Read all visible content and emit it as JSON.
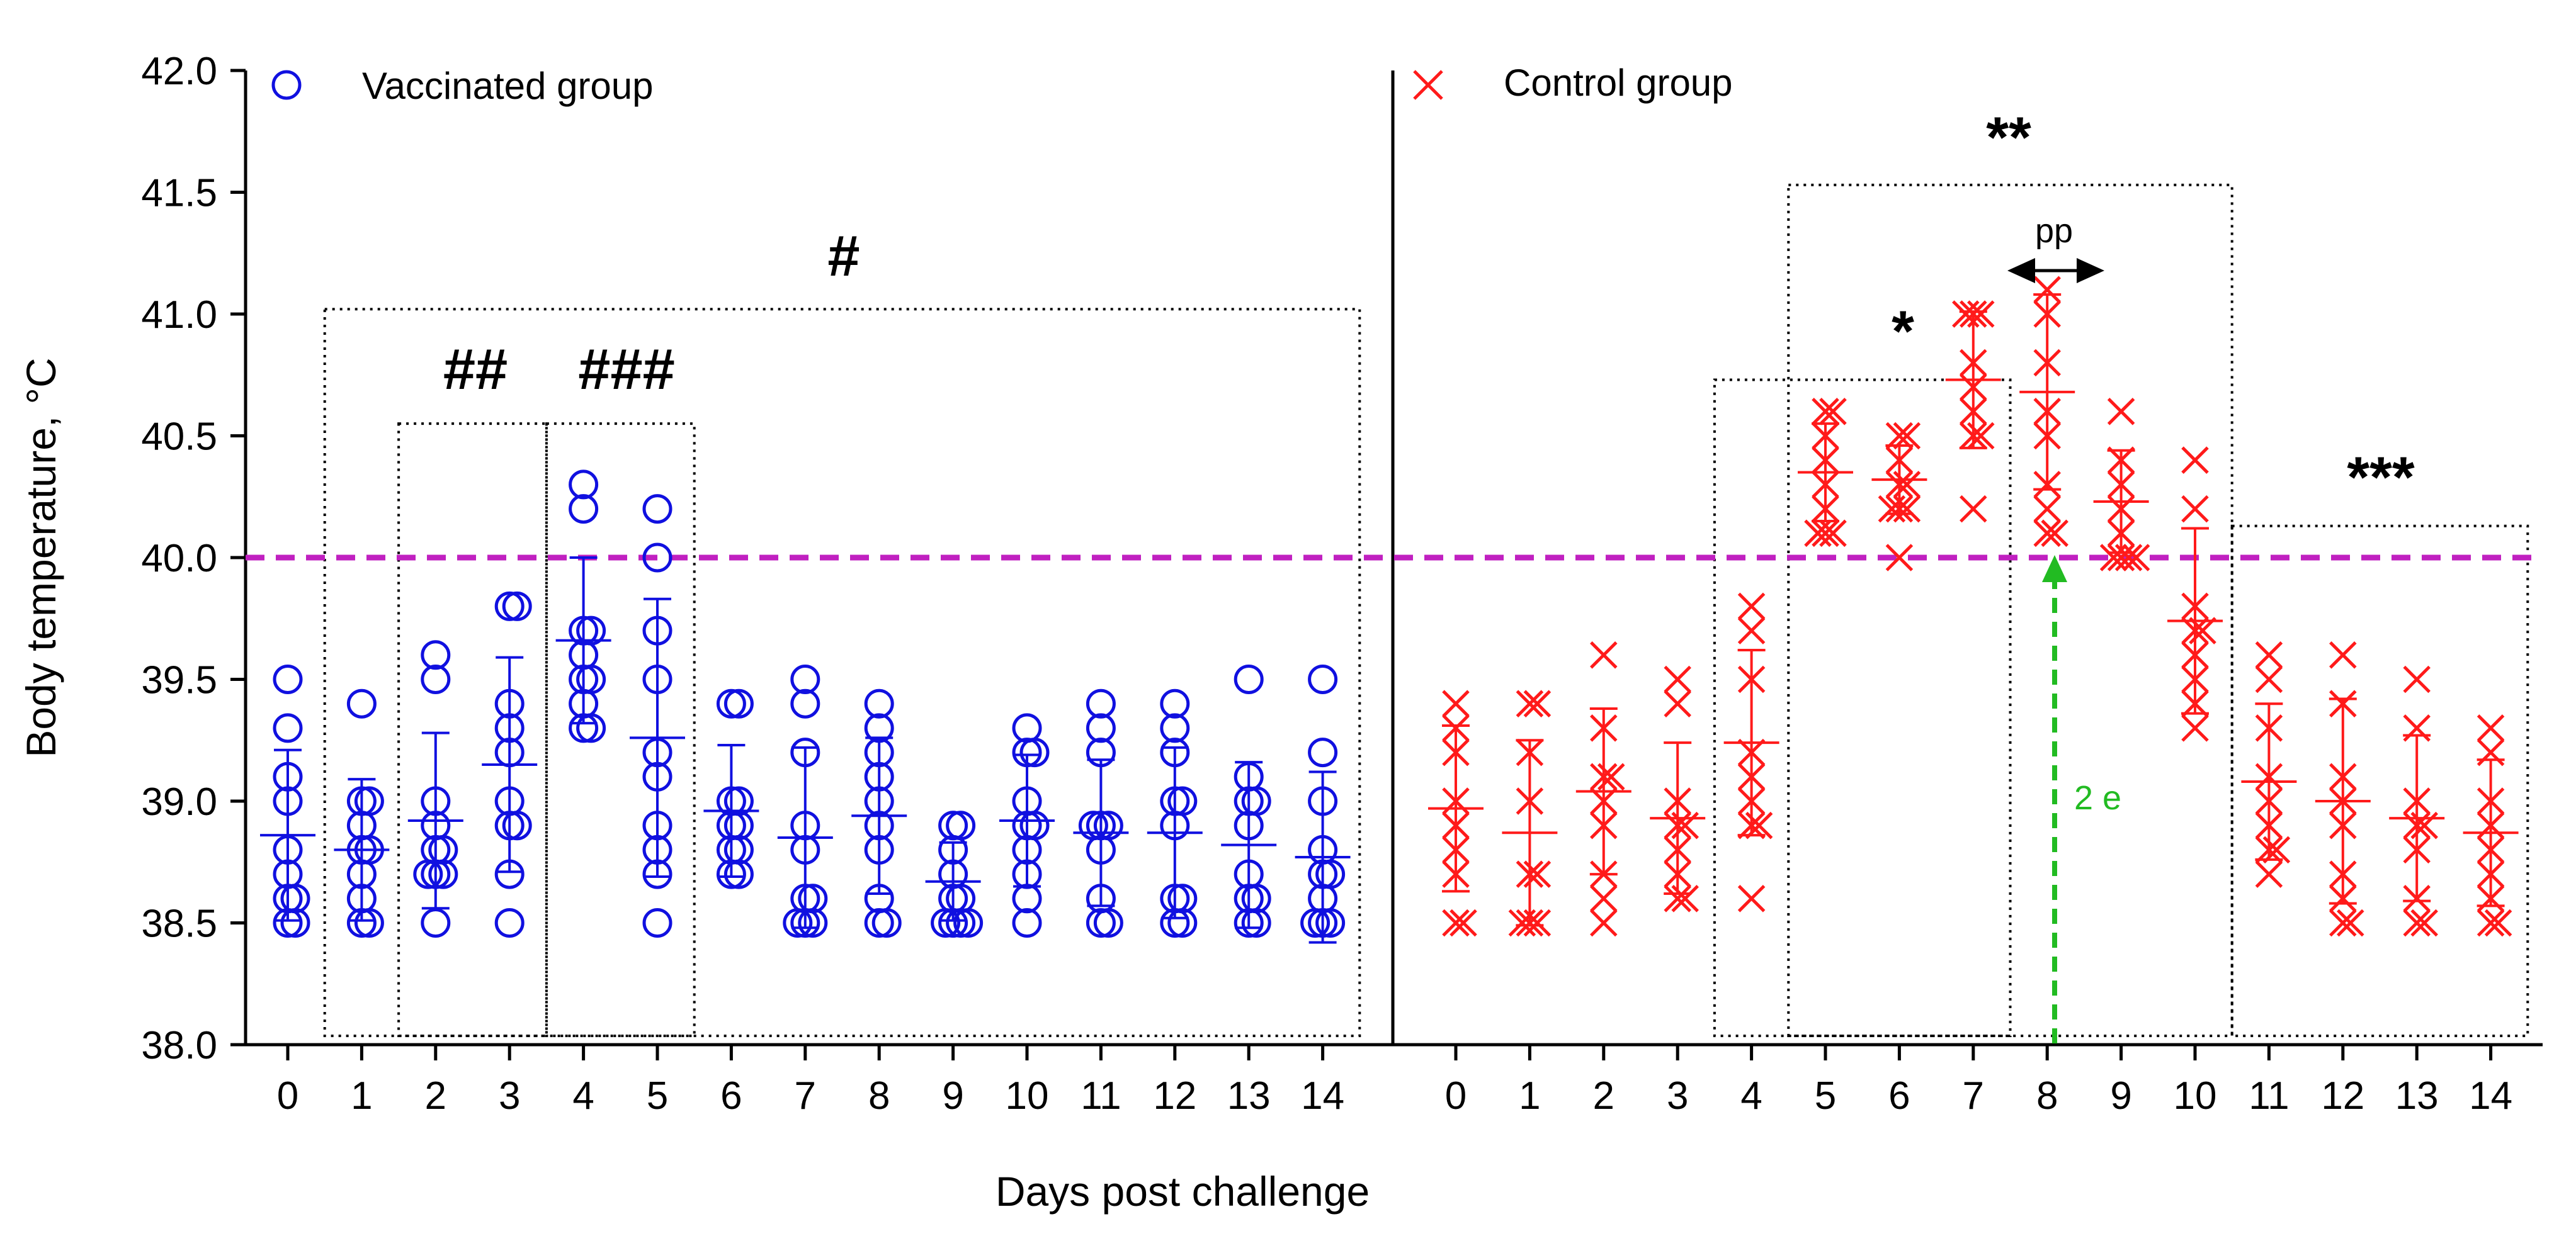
{
  "chart_data": {
    "type": "scatter",
    "title": "",
    "xlabel": "Days post challenge",
    "ylabel": "Body temperature, °C",
    "ylim": [
      38.0,
      42.0
    ],
    "yticks": [
      "38.0",
      "38.5",
      "39.0",
      "39.5",
      "40.0",
      "40.5",
      "41.0",
      "41.5",
      "42.0"
    ],
    "threshold": {
      "value": 40.0,
      "color": "#c020c0",
      "style": "dashed"
    },
    "colors": {
      "vaccinated": "#1010e0",
      "control": "#ff1a1a",
      "arrow": "#22bb22",
      "box": "#000000"
    },
    "series": [
      {
        "name": "Vaccinated group",
        "marker": "circle",
        "days": [
          "0",
          "1",
          "2",
          "3",
          "4",
          "5",
          "6",
          "7",
          "8",
          "9",
          "10",
          "11",
          "12",
          "13",
          "14"
        ],
        "points": [
          [
            39.5,
            39.3,
            39.1,
            39.0,
            38.8,
            38.7,
            38.6,
            38.6,
            38.5,
            38.5
          ],
          [
            39.4,
            39.0,
            39.0,
            38.9,
            38.8,
            38.8,
            38.7,
            38.6,
            38.5,
            38.5
          ],
          [
            39.6,
            39.5,
            39.0,
            38.9,
            38.8,
            38.8,
            38.7,
            38.7,
            38.7,
            38.5
          ],
          [
            39.8,
            39.8,
            39.4,
            39.3,
            39.2,
            39.0,
            38.9,
            38.9,
            38.7,
            38.5
          ],
          [
            40.3,
            40.2,
            39.7,
            39.7,
            39.6,
            39.5,
            39.5,
            39.4,
            39.3,
            39.3
          ],
          [
            40.2,
            40.0,
            39.7,
            39.5,
            39.2,
            39.1,
            38.9,
            38.8,
            38.7,
            38.5
          ],
          [
            39.4,
            39.4,
            39.0,
            39.0,
            38.9,
            38.9,
            38.8,
            38.8,
            38.7,
            38.7
          ],
          [
            39.5,
            39.4,
            39.2,
            38.9,
            38.8,
            38.6,
            38.6,
            38.5,
            38.5,
            38.5
          ],
          [
            39.4,
            39.3,
            39.2,
            39.1,
            39.0,
            38.9,
            38.8,
            38.6,
            38.5,
            38.5
          ],
          [
            38.9,
            38.9,
            38.8,
            38.7,
            38.6,
            38.6,
            38.5,
            38.5,
            38.5,
            38.5
          ],
          [
            39.3,
            39.2,
            39.2,
            39.0,
            38.9,
            38.9,
            38.8,
            38.7,
            38.6,
            38.5
          ],
          [
            39.4,
            39.3,
            39.2,
            38.9,
            38.9,
            38.9,
            38.8,
            38.6,
            38.5,
            38.5
          ],
          [
            39.4,
            39.3,
            39.2,
            39.0,
            39.0,
            38.9,
            38.6,
            38.6,
            38.5,
            38.5
          ],
          [
            39.5,
            39.1,
            39.0,
            39.0,
            38.9,
            38.7,
            38.6,
            38.6,
            38.5,
            38.5
          ],
          [
            39.5,
            39.2,
            39.0,
            38.8,
            38.7,
            38.7,
            38.6,
            38.5,
            38.5,
            38.5
          ]
        ],
        "mean": [
          38.86,
          38.8,
          38.92,
          39.15,
          39.66,
          39.26,
          38.96,
          38.85,
          38.94,
          38.67,
          38.92,
          38.87,
          38.87,
          38.82,
          38.77
        ],
        "sd": [
          0.35,
          0.29,
          0.36,
          0.44,
          0.34,
          0.57,
          0.27,
          0.37,
          0.32,
          0.16,
          0.27,
          0.3,
          0.35,
          0.34,
          0.35
        ]
      },
      {
        "name": "Control group",
        "marker": "cross",
        "days": [
          "0",
          "1",
          "2",
          "3",
          "4",
          "5",
          "6",
          "7",
          "8",
          "9",
          "10",
          "11",
          "12",
          "13",
          "14"
        ],
        "points": [
          [
            39.4,
            39.3,
            39.2,
            39.0,
            38.9,
            38.8,
            38.7,
            38.5,
            38.5
          ],
          [
            39.4,
            39.4,
            39.2,
            39.0,
            38.7,
            38.7,
            38.5,
            38.5,
            38.5
          ],
          [
            39.6,
            39.3,
            39.1,
            39.1,
            39.0,
            38.9,
            38.7,
            38.6,
            38.5
          ],
          [
            39.5,
            39.4,
            39.0,
            38.9,
            38.9,
            38.8,
            38.7,
            38.6,
            38.6
          ],
          [
            39.8,
            39.7,
            39.5,
            39.2,
            39.1,
            39.0,
            38.9,
            38.9,
            38.6
          ],
          [
            40.6,
            40.6,
            40.5,
            40.4,
            40.3,
            40.2,
            40.1,
            40.1,
            40.1
          ],
          [
            40.5,
            40.5,
            40.4,
            40.3,
            40.3,
            40.2,
            40.2,
            40.2,
            40.0
          ],
          [
            41.0,
            41.0,
            41.0,
            40.8,
            40.7,
            40.6,
            40.5,
            40.5,
            40.2
          ],
          [
            41.1,
            41.0,
            40.8,
            40.6,
            40.5,
            40.3,
            40.2,
            40.1,
            40.1
          ],
          [
            40.6,
            40.4,
            40.3,
            40.2,
            40.1,
            40.0,
            40.0,
            40.0,
            40.0
          ],
          [
            40.4,
            40.2,
            39.8,
            39.7,
            39.6,
            39.5,
            39.4,
            39.3,
            39.7
          ],
          [
            39.6,
            39.5,
            39.3,
            39.1,
            39.0,
            38.9,
            38.8,
            38.8,
            38.7
          ],
          [
            39.6,
            39.4,
            39.1,
            39.0,
            38.9,
            38.7,
            38.6,
            38.5,
            38.5
          ],
          [
            39.5,
            39.3,
            39.0,
            38.9,
            38.9,
            38.8,
            38.6,
            38.5,
            38.5
          ],
          [
            39.3,
            39.2,
            39.0,
            38.9,
            38.8,
            38.7,
            38.6,
            38.5,
            38.5
          ]
        ],
        "mean": [
          38.97,
          38.87,
          39.04,
          38.93,
          39.24,
          40.35,
          40.32,
          40.73,
          40.68,
          40.23,
          39.74,
          39.08,
          39.0,
          38.93,
          38.87
        ],
        "sd": [
          0.34,
          0.38,
          0.34,
          0.31,
          0.38,
          0.2,
          0.14,
          0.28,
          0.4,
          0.21,
          0.38,
          0.32,
          0.42,
          0.34,
          0.3
        ]
      }
    ],
    "significance_boxes": [
      {
        "group": "Vaccinated group",
        "from_day": 1,
        "to_day": 14,
        "top": 41.02,
        "label": "#"
      },
      {
        "group": "Vaccinated group",
        "from_day": 2,
        "to_day": 3,
        "top": 40.55,
        "label": "##"
      },
      {
        "group": "Vaccinated group",
        "from_day": 4,
        "to_day": 5,
        "top": 40.55,
        "label": "###"
      },
      {
        "group": "Control group",
        "from_day": 4,
        "to_day": 7,
        "top": 40.73,
        "label": "*"
      },
      {
        "group": "Control group",
        "from_day": 5,
        "to_day": 10,
        "top": 41.53,
        "label": "**"
      },
      {
        "group": "Control group",
        "from_day": 11,
        "to_day": 14,
        "top": 40.13,
        "label": "***"
      }
    ],
    "annotations": [
      {
        "text": "pp",
        "at_day": 8,
        "type": "double-arrow"
      },
      {
        "text": "2 e",
        "at_day": 8,
        "type": "arrow-up"
      }
    ]
  }
}
